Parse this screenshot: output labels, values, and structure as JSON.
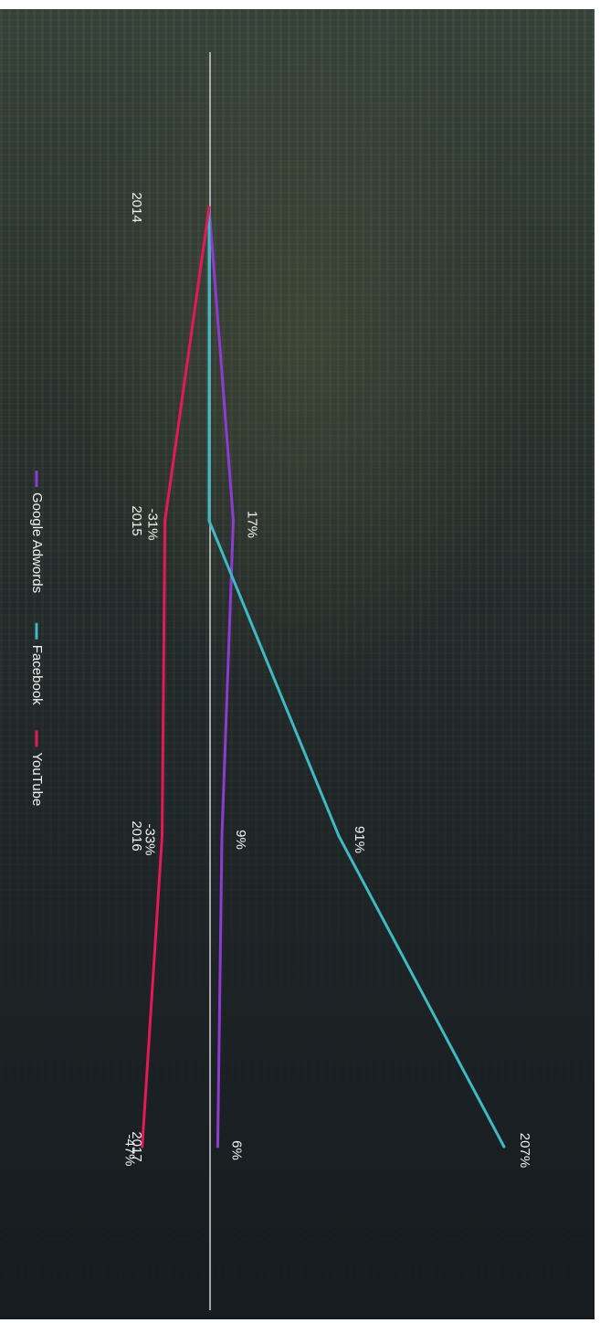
{
  "chart_data": {
    "type": "line",
    "orientation": "rotated-90-clockwise",
    "categories": [
      "2014",
      "2015",
      "2016",
      "2017"
    ],
    "series": [
      {
        "name": "Google Adwords",
        "color": "#8e3bd1",
        "values": [
          0,
          17,
          9,
          6
        ],
        "labels": [
          "",
          "17%",
          "9%",
          "6%"
        ]
      },
      {
        "name": "Facebook",
        "color": "#3fb9c4",
        "values": [
          0,
          0,
          91,
          207
        ],
        "labels": [
          "",
          "",
          "91%",
          "207%"
        ]
      },
      {
        "name": "YouTube",
        "color": "#e5195a",
        "values": [
          0,
          -31,
          -33,
          -47
        ],
        "labels": [
          "",
          "-31%",
          "-33%",
          "-47%"
        ]
      }
    ],
    "legend_position": "left",
    "zero_line": true,
    "grid": false
  }
}
